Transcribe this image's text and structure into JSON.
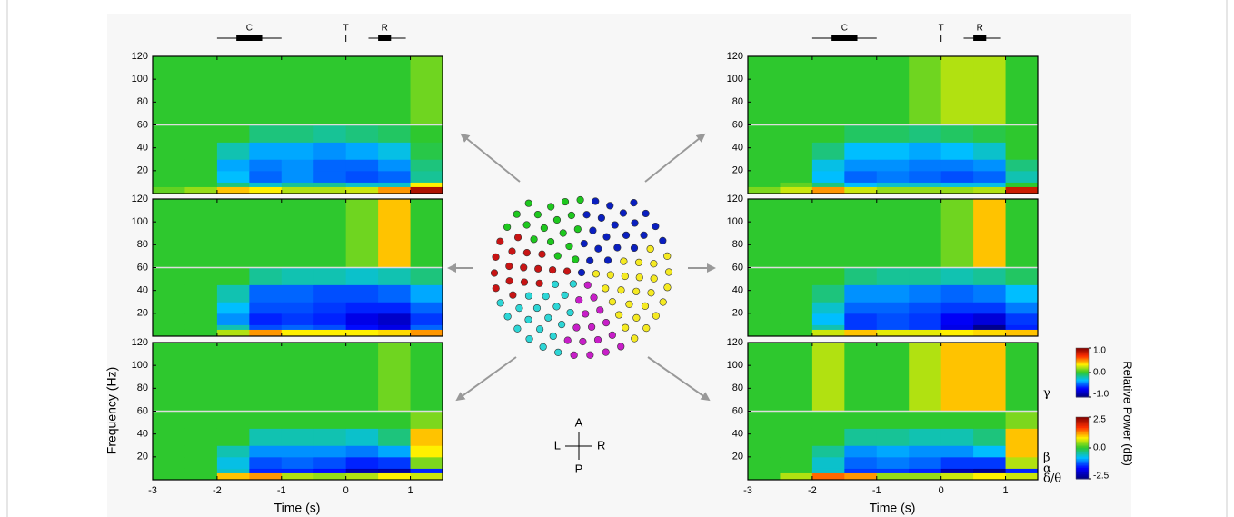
{
  "chart_data": {
    "type": "heatmap",
    "x_label": "Time (s)",
    "y_label": "Frequency (Hz)",
    "xlim": [
      -3,
      1.5
    ],
    "xticks": [
      -3,
      -2,
      -1,
      0,
      1
    ],
    "ylim": [
      0,
      120
    ],
    "yticks": [
      20,
      40,
      60,
      80,
      100,
      120
    ],
    "x_bins": [
      -3,
      -2.5,
      -2,
      -1.5,
      -1,
      -0.5,
      0,
      0.5,
      1,
      1.5
    ],
    "y_bins": [
      0,
      6,
      10,
      20,
      30,
      45,
      60,
      120
    ],
    "band_boundary": 60,
    "panels": [
      {
        "values": [
          [
            0.2,
            0.4,
            1.0,
            0.8,
            0.5,
            0.5,
            0.6,
            1.2,
            2.2
          ],
          [
            0,
            0,
            -0.3,
            -0.6,
            -0.4,
            -0.4,
            -0.6,
            -0.6,
            0.8
          ],
          [
            0,
            0,
            -0.8,
            -1.2,
            -1.0,
            -1.2,
            -1.3,
            -1.2,
            -0.4
          ],
          [
            0,
            0,
            -0.9,
            -1.1,
            -1.0,
            -1.2,
            -1.2,
            -1.0,
            -0.3
          ],
          [
            0,
            0,
            -0.5,
            -0.9,
            -0.9,
            -1.0,
            -0.9,
            -0.7,
            -0.1
          ],
          [
            0,
            0,
            0,
            -0.3,
            -0.3,
            -0.4,
            -0.3,
            -0.2,
            0
          ],
          [
            0,
            0,
            0,
            0,
            0,
            0,
            0,
            0,
            0.1
          ]
        ]
      },
      {
        "values": [
          [
            0,
            0,
            0.5,
            1.2,
            0.8,
            0.8,
            0.8,
            0.9,
            1.2
          ],
          [
            0,
            0,
            -0.5,
            -1.3,
            -1.2,
            -1.3,
            -1.6,
            -1.8,
            -1.2
          ],
          [
            0,
            0,
            -1.0,
            -1.5,
            -1.4,
            -1.5,
            -1.8,
            -2.0,
            -1.4
          ],
          [
            0,
            0,
            -0.8,
            -1.3,
            -1.3,
            -1.4,
            -1.5,
            -1.5,
            -1.2
          ],
          [
            0,
            0,
            -0.5,
            -1.2,
            -1.2,
            -1.3,
            -1.3,
            -1.2,
            -0.9
          ],
          [
            0,
            0,
            0,
            -0.4,
            -0.5,
            -0.5,
            -0.6,
            -0.5,
            -0.3
          ],
          [
            0,
            0,
            0,
            0,
            0,
            0,
            0.1,
            0.4,
            0
          ]
        ]
      },
      {
        "values": [
          [
            0,
            0,
            1.0,
            1.2,
            0.5,
            0.4,
            0.5,
            0.8,
            0.6
          ],
          [
            0,
            0,
            -0.6,
            -1.5,
            -1.5,
            -1.6,
            -2.2,
            -2.3,
            -1.5
          ],
          [
            0,
            0,
            -0.7,
            -1.3,
            -1.2,
            -1.3,
            -1.5,
            -1.4,
            0.3
          ],
          [
            0,
            0,
            -0.5,
            -1.0,
            -1.0,
            -1.0,
            -1.1,
            -0.9,
            0.8
          ],
          [
            0,
            0,
            0,
            -0.5,
            -0.5,
            -0.5,
            -0.6,
            -0.3,
            1.0
          ],
          [
            0,
            0,
            0,
            0,
            0,
            0,
            0,
            0,
            0.3
          ],
          [
            0,
            0,
            0,
            0,
            0,
            0,
            0,
            0.1,
            0
          ]
        ]
      },
      {
        "values": [
          [
            0.3,
            0.6,
            1.2,
            0.6,
            0.4,
            0.4,
            0.4,
            0.5,
            2.0
          ],
          [
            0,
            0.2,
            -0.3,
            -0.8,
            -0.6,
            -0.6,
            -0.7,
            -0.7,
            0
          ],
          [
            0,
            0,
            -0.8,
            -1.2,
            -1.1,
            -1.2,
            -1.3,
            -1.2,
            -0.5
          ],
          [
            0,
            0,
            -0.7,
            -1.0,
            -1.0,
            -1.1,
            -1.1,
            -1.0,
            -0.3
          ],
          [
            0,
            0,
            -0.3,
            -0.8,
            -0.8,
            -0.9,
            -0.8,
            -0.6,
            0
          ],
          [
            0,
            0,
            0,
            -0.2,
            -0.2,
            -0.3,
            -0.2,
            -0.1,
            0
          ],
          [
            0,
            0,
            0,
            0,
            0,
            0.1,
            0.2,
            0.2,
            0
          ]
        ]
      },
      {
        "values": [
          [
            0,
            0,
            0.6,
            1.0,
            0.7,
            0.7,
            0.8,
            0.9,
            1.0
          ],
          [
            0,
            0,
            -0.5,
            -1.4,
            -1.3,
            -1.4,
            -1.8,
            -2.4,
            -1.5
          ],
          [
            0,
            0,
            -0.8,
            -1.4,
            -1.3,
            -1.4,
            -1.7,
            -1.9,
            -1.4
          ],
          [
            0,
            0,
            -0.6,
            -1.2,
            -1.2,
            -1.3,
            -1.4,
            -1.4,
            -1.1
          ],
          [
            0,
            0,
            -0.3,
            -1.0,
            -1.0,
            -1.1,
            -1.2,
            -1.1,
            -0.8
          ],
          [
            0,
            0,
            0,
            -0.3,
            -0.4,
            -0.4,
            -0.5,
            -0.4,
            -0.2
          ],
          [
            0,
            0,
            0,
            0,
            0,
            0,
            0.1,
            0.4,
            0
          ]
        ]
      },
      {
        "values": [
          [
            0,
            0.5,
            1.4,
            1.2,
            0.4,
            0.4,
            0.6,
            0.8,
            0.6
          ],
          [
            0,
            0,
            -0.6,
            -1.4,
            -1.4,
            -1.5,
            -2.2,
            -2.4,
            -1.5
          ],
          [
            0,
            0,
            -0.6,
            -1.2,
            -1.1,
            -1.2,
            -1.4,
            -1.4,
            0.5
          ],
          [
            0,
            0,
            -0.4,
            -1.0,
            -0.9,
            -1.0,
            -1.0,
            -0.8,
            1.0
          ],
          [
            0,
            0,
            0,
            -0.4,
            -0.4,
            -0.5,
            -0.5,
            -0.3,
            1.0
          ],
          [
            0,
            0,
            0,
            0,
            0,
            0,
            0,
            0,
            0.3
          ],
          [
            0,
            0,
            0.2,
            0,
            0,
            0.2,
            0.4,
            0.4,
            0
          ]
        ]
      }
    ],
    "events": [
      {
        "label": "C",
        "span": [
          -2,
          -1
        ],
        "core": [
          -1.7,
          -1.3
        ]
      },
      {
        "label": "T",
        "at": 0
      },
      {
        "label": "R",
        "span": [
          0.35,
          0.93
        ],
        "core": [
          0.5,
          0.7
        ]
      }
    ],
    "colorbar_label": "Relative Power (dB)",
    "colorbars": [
      {
        "clim": [
          -1,
          1
        ],
        "ticks": [
          {
            "value": 1,
            "label": "1.0"
          },
          {
            "value": 0,
            "label": "0.0"
          },
          {
            "value": -1,
            "label": "-1.0"
          }
        ]
      },
      {
        "clim": [
          -2.5,
          2.5
        ],
        "ticks": [
          2.5,
          {
            "value": 0,
            "label": "0.0"
          },
          -2.5
        ]
      }
    ],
    "band_labels": [
      "γ",
      "β",
      "α",
      "δ/θ"
    ]
  },
  "orientation": {
    "up": "A",
    "down": "P",
    "left": "L",
    "right": "R"
  }
}
